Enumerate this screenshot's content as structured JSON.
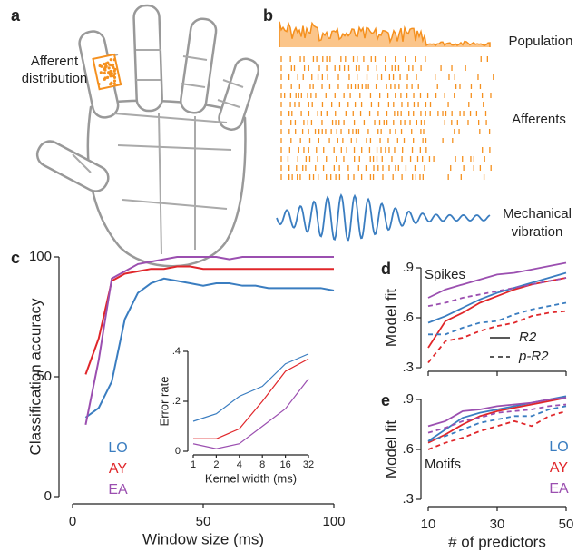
{
  "panel_a": {
    "label": "a",
    "caption": [
      "Afferent",
      "distribution"
    ]
  },
  "panel_b": {
    "label": "b",
    "population": "Population",
    "afferents": "Afferents",
    "vibration": [
      "Mechanical",
      "vibration"
    ]
  },
  "chart_data": [
    {
      "panel": "c",
      "type": "line",
      "xlabel": "Window size (ms)",
      "ylabel": "Classification accuracy",
      "x": [
        5,
        10,
        15,
        20,
        25,
        30,
        35,
        40,
        45,
        50,
        55,
        60,
        65,
        70,
        75,
        80,
        85,
        90,
        95,
        100
      ],
      "xlim": [
        0,
        100
      ],
      "xticks": [
        0,
        50,
        100
      ],
      "ylim": [
        0,
        100
      ],
      "yticks": [
        0,
        50,
        100
      ],
      "legend": "lower left",
      "series": [
        {
          "name": "LO",
          "color": "#3a7dc0",
          "values": [
            33,
            37,
            48,
            74,
            85,
            89,
            91,
            90,
            89,
            88,
            89,
            89,
            88,
            88,
            87,
            87,
            87,
            87,
            87,
            86
          ]
        },
        {
          "name": "AY",
          "color": "#e0262a",
          "values": [
            51,
            66,
            90,
            93,
            94,
            95,
            95,
            96,
            96,
            95,
            95,
            95,
            95,
            95,
            95,
            95,
            95,
            95,
            95,
            95
          ]
        },
        {
          "name": "EA",
          "color": "#9b4fb0",
          "values": [
            30,
            57,
            91,
            94,
            97,
            98,
            99,
            100,
            100,
            100,
            100,
            99,
            100,
            100,
            100,
            100,
            100,
            100,
            100,
            100
          ]
        }
      ]
    },
    {
      "type": "line",
      "xlabel": "Kernel width (ms)",
      "ylabel": "Error rate",
      "categories": [
        "1",
        "2",
        "4",
        "8",
        "16",
        "32"
      ],
      "ylim": [
        0,
        0.4
      ],
      "yticks": [
        0,
        {
          "value": 0.2,
          "label": ".2"
        },
        {
          "value": 0.4,
          "label": ".4"
        }
      ],
      "series": [
        {
          "name": "LO",
          "color": "#3a7dc0",
          "values": [
            0.12,
            0.15,
            0.22,
            0.26,
            0.35,
            0.39
          ]
        },
        {
          "name": "AY",
          "color": "#e0262a",
          "values": [
            0.05,
            0.05,
            0.09,
            0.2,
            0.32,
            0.37
          ]
        },
        {
          "name": "EA",
          "color": "#9b4fb0",
          "values": [
            0.03,
            0.01,
            0.03,
            0.1,
            0.17,
            0.29
          ]
        }
      ]
    },
    {
      "panel": "d",
      "type": "line",
      "annotation": "Spikes",
      "ylabel": "Model fit",
      "x": [
        10,
        15,
        20,
        25,
        30,
        35,
        40,
        45,
        50
      ],
      "xlim": [
        10,
        50
      ],
      "xticks": [
        10,
        30,
        50
      ],
      "show_xtick_labels": false,
      "ylim": [
        0.3,
        0.9
      ],
      "yticks": [
        {
          "value": 0.3,
          "label": ".3"
        },
        {
          "value": 0.6,
          "label": ".6"
        },
        {
          "value": 0.9,
          "label": ".9"
        }
      ],
      "style_legend": [
        {
          "label": "R2",
          "dash": false
        },
        {
          "label": "p-R2",
          "dash": true
        }
      ],
      "series": [
        {
          "name": "LO",
          "color": "#3a7dc0",
          "dash": false,
          "values": [
            0.57,
            0.61,
            0.66,
            0.71,
            0.75,
            0.78,
            0.81,
            0.84,
            0.87
          ]
        },
        {
          "name": "AY",
          "color": "#e0262a",
          "dash": false,
          "values": [
            0.42,
            0.58,
            0.63,
            0.69,
            0.73,
            0.77,
            0.8,
            0.82,
            0.84
          ]
        },
        {
          "name": "EA",
          "color": "#9b4fb0",
          "dash": false,
          "values": [
            0.72,
            0.77,
            0.8,
            0.83,
            0.86,
            0.87,
            0.89,
            0.91,
            0.93
          ]
        },
        {
          "name": "LO",
          "color": "#3a7dc0",
          "dash": true,
          "values": [
            0.5,
            0.5,
            0.54,
            0.57,
            0.58,
            0.62,
            0.65,
            0.67,
            0.69
          ]
        },
        {
          "name": "AY",
          "color": "#e0262a",
          "dash": true,
          "values": [
            0.33,
            0.46,
            0.48,
            0.52,
            0.55,
            0.57,
            0.61,
            0.63,
            0.64
          ]
        },
        {
          "name": "EA",
          "color": "#9b4fb0",
          "dash": true,
          "values": [
            0.67,
            0.69,
            0.72,
            0.74,
            0.76,
            0.78,
            0.8,
            0.82,
            0.84
          ]
        }
      ]
    },
    {
      "panel": "e",
      "type": "line",
      "annotation": "Motifs",
      "ylabel": "Model fit",
      "xlabel": "# of predictors",
      "x": [
        10,
        15,
        20,
        25,
        30,
        35,
        40,
        45,
        50
      ],
      "xlim": [
        10,
        50
      ],
      "xticks": [
        10,
        30,
        50
      ],
      "show_xtick_labels": true,
      "ylim": [
        0.3,
        0.9
      ],
      "yticks": [
        {
          "value": 0.3,
          "label": ".3"
        },
        {
          "value": 0.6,
          "label": ".6"
        },
        {
          "value": 0.9,
          "label": ".9"
        }
      ],
      "legend": "lower right",
      "series": [
        {
          "name": "LO",
          "color": "#3a7dc0",
          "dash": false,
          "values": [
            0.65,
            0.72,
            0.79,
            0.82,
            0.84,
            0.86,
            0.88,
            0.9,
            0.92
          ]
        },
        {
          "name": "AY",
          "color": "#e0262a",
          "dash": false,
          "values": [
            0.64,
            0.69,
            0.75,
            0.8,
            0.83,
            0.85,
            0.87,
            0.89,
            0.91
          ]
        },
        {
          "name": "EA",
          "color": "#9b4fb0",
          "dash": false,
          "values": [
            0.74,
            0.77,
            0.83,
            0.84,
            0.86,
            0.87,
            0.88,
            0.9,
            0.91
          ]
        },
        {
          "name": "LO",
          "color": "#3a7dc0",
          "dash": true,
          "values": [
            0.65,
            0.68,
            0.72,
            0.76,
            0.78,
            0.8,
            0.8,
            0.84,
            0.86
          ]
        },
        {
          "name": "AY",
          "color": "#e0262a",
          "dash": true,
          "values": [
            0.6,
            0.64,
            0.67,
            0.71,
            0.74,
            0.77,
            0.74,
            0.8,
            0.83
          ]
        },
        {
          "name": "EA",
          "color": "#9b4fb0",
          "dash": true,
          "values": [
            0.7,
            0.73,
            0.77,
            0.79,
            0.82,
            0.83,
            0.84,
            0.86,
            0.87
          ]
        }
      ]
    }
  ]
}
